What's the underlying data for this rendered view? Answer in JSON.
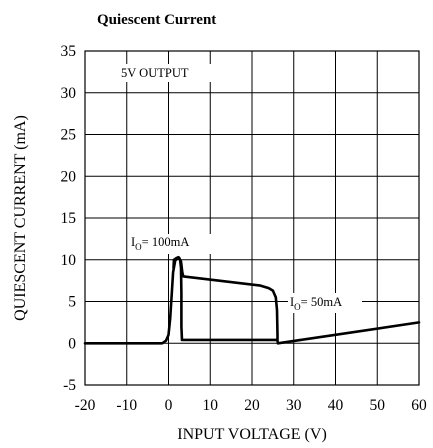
{
  "chart_data": {
    "type": "line",
    "title": "Quiescent Current",
    "xlabel": "INPUT VOLTAGE (V)",
    "ylabel": "QUIESCENT CURRENT (mA)",
    "xlim": [
      -20,
      60
    ],
    "ylim": [
      -5,
      35
    ],
    "xticks": [
      -20,
      -10,
      0,
      10,
      20,
      30,
      40,
      50,
      60
    ],
    "yticks": [
      -5,
      0,
      5,
      10,
      15,
      20,
      25,
      30,
      35
    ],
    "grid": true,
    "condition_label": "5V OUTPUT",
    "series": [
      {
        "label_main": "I",
        "label_sub": "O",
        "label_rest": "= 100mA",
        "x": [
          -20,
          -1.5,
          -0.6,
          0.0,
          0.4,
          0.8,
          1.1,
          1.6,
          2.2,
          2.6,
          2.8,
          3.0,
          3.1,
          3.1,
          3.2,
          3.2,
          26.0
        ],
        "y": [
          0,
          0,
          0.3,
          1.0,
          3.0,
          6.0,
          8.5,
          9.9,
          10.2,
          10.2,
          9.9,
          9.0,
          6.0,
          2.0,
          0.6,
          0.4,
          0.4
        ]
      },
      {
        "label_main": "I",
        "label_sub": "O",
        "label_rest": "= 50mA",
        "x": [
          1.2,
          1.3,
          1.9,
          2.4,
          3.0,
          3.3,
          3.5,
          3.6,
          22.0,
          24.0,
          25.0,
          25.7,
          26.0,
          26.1,
          26.1,
          26.2,
          60.0
        ],
        "y": [
          9.0,
          10.0,
          10.2,
          10.3,
          9.8,
          8.5,
          8.1,
          8.0,
          6.9,
          6.6,
          6.3,
          5.5,
          4.0,
          1.0,
          0.3,
          0.0,
          2.5
        ]
      }
    ]
  }
}
